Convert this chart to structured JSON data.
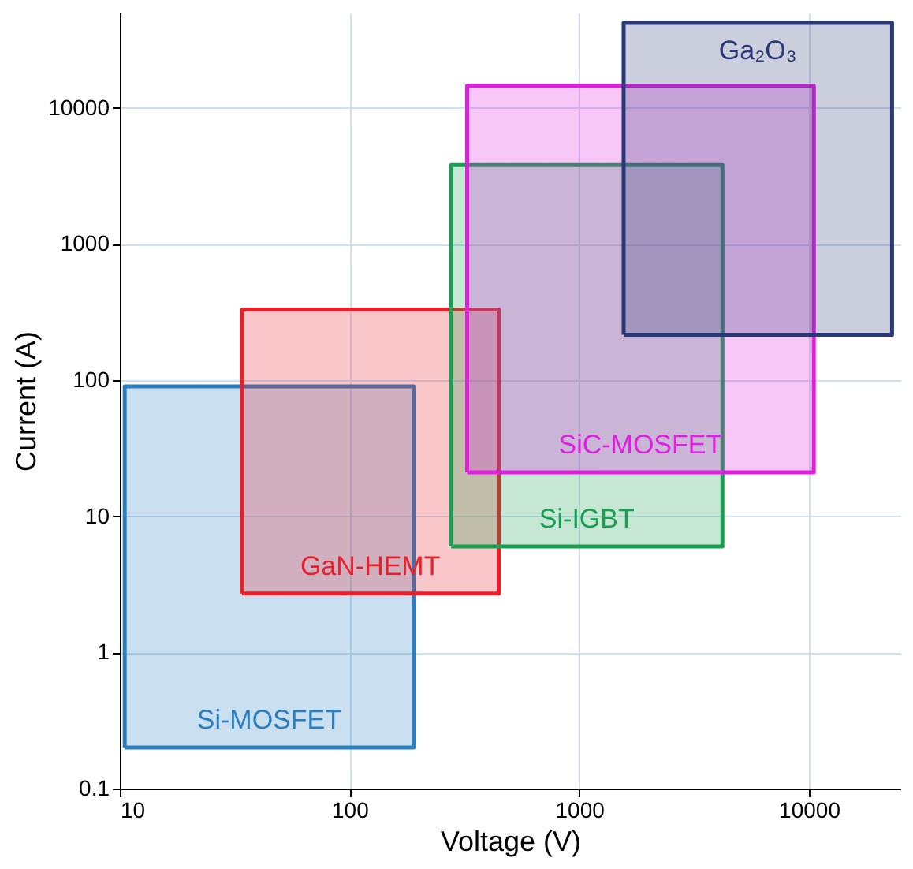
{
  "chart_data": {
    "type": "area",
    "xlabel": "Voltage (V)",
    "ylabel": "Current (A)",
    "log": "xy",
    "grid": true,
    "legend": false,
    "line_style": "solid",
    "xlim": [
      10,
      25000
    ],
    "ylim": [
      0.1,
      50000
    ],
    "xticks": [
      10,
      100,
      1000,
      10000
    ],
    "yticks": [
      0.1,
      1,
      10,
      100,
      1000,
      10000
    ],
    "series": [
      {
        "name": "Si-MOSFET",
        "color": "#2a7fc0",
        "x": [
          10.5,
          190,
          190,
          10.5,
          10.5
        ],
        "values": [
          0.2,
          0.2,
          90,
          90,
          0.2
        ]
      },
      {
        "name": "GaN-HEMT",
        "color": "#e8202a",
        "x": [
          34,
          446,
          446,
          34,
          34
        ],
        "values": [
          2.7,
          2.7,
          330,
          330,
          2.7
        ]
      },
      {
        "name": "Si-IGBT",
        "color": "#18a050",
        "x": [
          277,
          4200,
          4200,
          277,
          277
        ],
        "values": [
          6,
          6,
          3800,
          3800,
          6
        ]
      },
      {
        "name": "SiC-MOSFET",
        "color": "#e020e0",
        "x": [
          325,
          10500,
          10500,
          325,
          325
        ],
        "values": [
          21,
          21,
          14500,
          14500,
          21
        ]
      },
      {
        "name": "Ga₂O₃",
        "color": "#2a3a78",
        "x": [
          1560,
          23000,
          23000,
          1560,
          1560
        ],
        "values": [
          215,
          215,
          42000,
          42000,
          215
        ]
      }
    ]
  }
}
